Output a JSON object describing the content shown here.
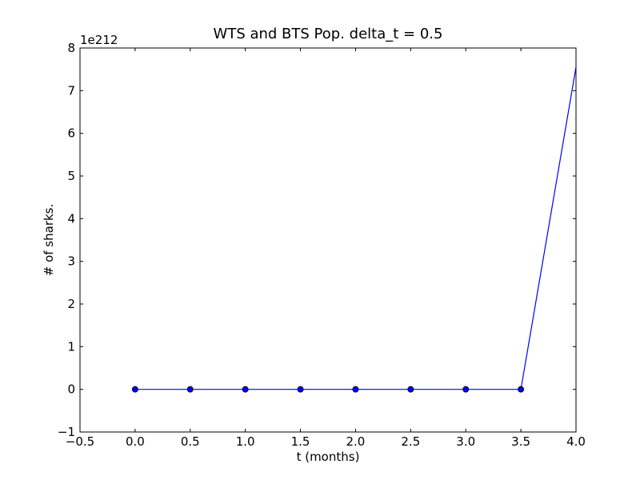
{
  "chart_data": {
    "type": "line",
    "title": "WTS and BTS Pop. delta_t = 0.5",
    "xlabel": "t (months)",
    "ylabel": "# of sharks.",
    "y_offset_label": "1e212",
    "xlim": [
      -0.5,
      4.0
    ],
    "ylim": [
      -1,
      8
    ],
    "xticks": [
      -0.5,
      0.0,
      0.5,
      1.0,
      1.5,
      2.0,
      2.5,
      3.0,
      3.5,
      4.0
    ],
    "xtick_labels": [
      "−0.5",
      "0.0",
      "0.5",
      "1.0",
      "1.5",
      "2.0",
      "2.5",
      "3.0",
      "3.5",
      "4.0"
    ],
    "yticks": [
      -1,
      0,
      1,
      2,
      3,
      4,
      5,
      6,
      7,
      8
    ],
    "ytick_labels": [
      "−1",
      "0",
      "1",
      "2",
      "3",
      "4",
      "5",
      "6",
      "7",
      "8"
    ],
    "grid": false,
    "series": [
      {
        "color": "#0000ff",
        "x": [
          0.0,
          0.5,
          1.0,
          1.5,
          2.0,
          2.5,
          3.0,
          3.5,
          4.0
        ],
        "y": [
          0,
          0,
          0,
          0,
          0,
          0,
          0,
          0,
          7.55
        ],
        "markers": [
          true,
          true,
          true,
          true,
          true,
          true,
          true,
          true,
          false
        ]
      }
    ]
  }
}
